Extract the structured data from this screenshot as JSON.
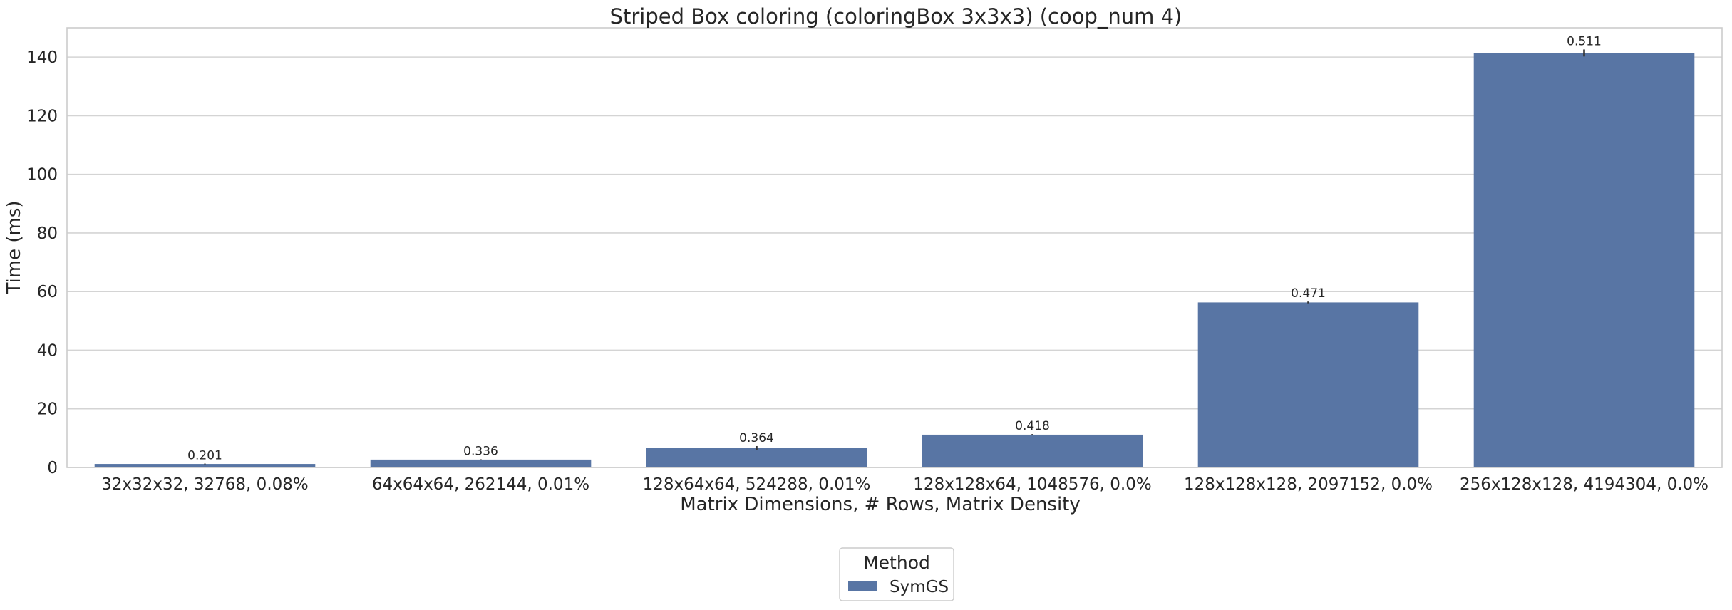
{
  "chart_data": {
    "type": "bar",
    "title": "Striped Box coloring (coloringBox 3x3x3) (coop_num 4)",
    "xlabel": "Matrix Dimensions, # Rows, Matrix Density",
    "ylabel": "Time (ms)",
    "ylim": [
      0,
      150
    ],
    "yticks": [
      0,
      20,
      40,
      60,
      80,
      100,
      120,
      140
    ],
    "grid": true,
    "categories": [
      "32x32x32, 32768, 0.08%",
      "64x64x64, 262144, 0.01%",
      "128x64x64, 524288, 0.01%",
      "128x128x64, 1048576, 0.0%",
      "128x128x128, 2097152, 0.0%",
      "256x128x128, 4194304, 0.0%"
    ],
    "series": [
      {
        "name": "SymGS",
        "color": "#5875a4",
        "values": [
          1.2,
          2.7,
          6.6,
          11.2,
          56.3,
          141.4
        ],
        "error": [
          0.1,
          0.1,
          0.7,
          0.2,
          0.3,
          1.2
        ],
        "labels": [
          "0.201",
          "0.336",
          "0.364",
          "0.418",
          "0.471",
          "0.511"
        ]
      }
    ],
    "legend": {
      "title": "Method",
      "placement": "bottom-center"
    }
  }
}
